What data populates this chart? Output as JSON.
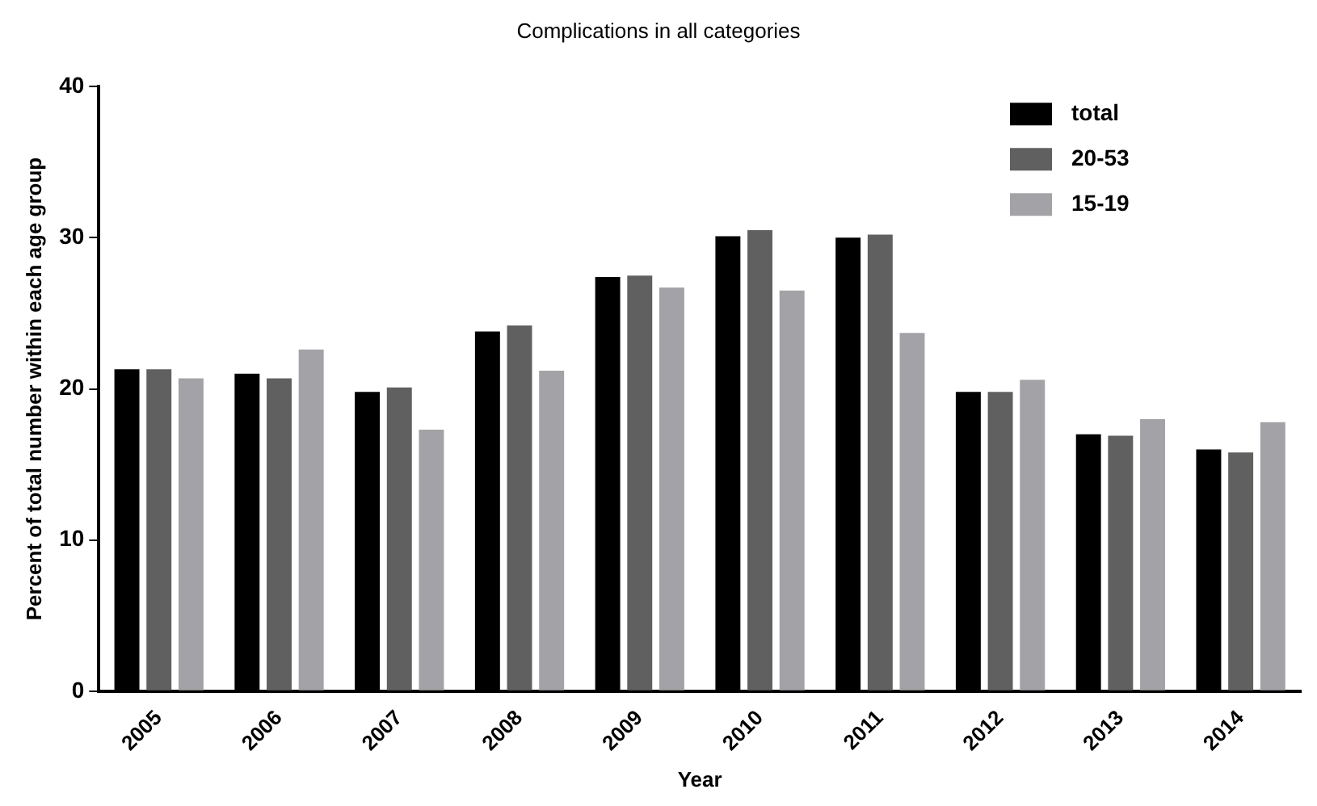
{
  "chart_data": {
    "type": "bar",
    "title": "Complications in all categories",
    "xlabel": "Year",
    "ylabel": "Percent of total number within each age group",
    "categories": [
      "2005",
      "2006",
      "2007",
      "2008",
      "2009",
      "2010",
      "2011",
      "2012",
      "2013",
      "2014"
    ],
    "series": [
      {
        "name": "total",
        "color": "#000000",
        "values": [
          21.3,
          21.0,
          19.8,
          23.8,
          27.4,
          30.1,
          30.0,
          19.8,
          17.0,
          16.0
        ]
      },
      {
        "name": "20-53",
        "color": "#606060",
        "values": [
          21.3,
          20.7,
          20.1,
          24.2,
          27.5,
          30.5,
          30.2,
          19.8,
          16.9,
          15.8
        ]
      },
      {
        "name": "15-19",
        "color": "#a3a3a7",
        "values": [
          20.7,
          22.6,
          17.3,
          21.2,
          26.7,
          26.5,
          23.7,
          20.6,
          18.0,
          17.8
        ]
      }
    ],
    "ylim": [
      0,
      40
    ],
    "yticks": [
      0,
      10,
      20,
      30,
      40
    ],
    "grid": false,
    "legend": "top right"
  }
}
